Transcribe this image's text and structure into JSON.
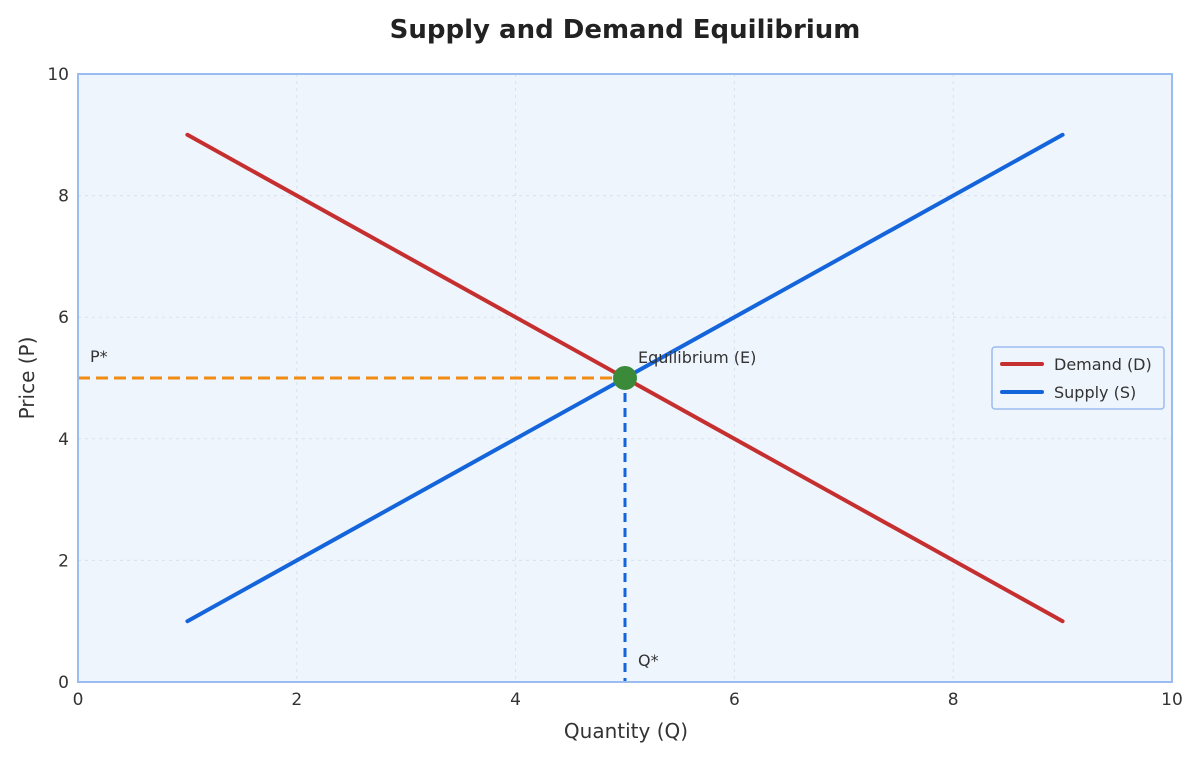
{
  "chart_data": {
    "type": "line",
    "title": "Supply and Demand Equilibrium",
    "xlabel": "Quantity (Q)",
    "ylabel": "Price (P)",
    "xlim": [
      0,
      10
    ],
    "ylim": [
      0,
      10
    ],
    "xticks": [
      0,
      2,
      4,
      6,
      8,
      10
    ],
    "yticks": [
      0,
      2,
      4,
      6,
      8,
      10
    ],
    "grid": true,
    "legend_position": "right",
    "series": [
      {
        "name": "Demand (D)",
        "color": "#c62f2f",
        "x": [
          1,
          9
        ],
        "y": [
          9,
          1
        ]
      },
      {
        "name": "Supply (S)",
        "color": "#1464dc",
        "x": [
          1,
          9
        ],
        "y": [
          1,
          9
        ]
      }
    ],
    "equilibrium": {
      "x": 5,
      "y": 5,
      "label": "Equilibrium (E)",
      "color": "#3a8a3a"
    },
    "reference_lines": [
      {
        "axis": "price",
        "value": 5,
        "label": "P*",
        "color": "#f08c14"
      },
      {
        "axis": "quantity",
        "value": 5,
        "label": "Q*",
        "color": "#1464dc"
      }
    ],
    "colors": {
      "plot_background": "#eef5fc",
      "frame": "#9bbcf0",
      "grid": "#d8e2ef"
    }
  }
}
